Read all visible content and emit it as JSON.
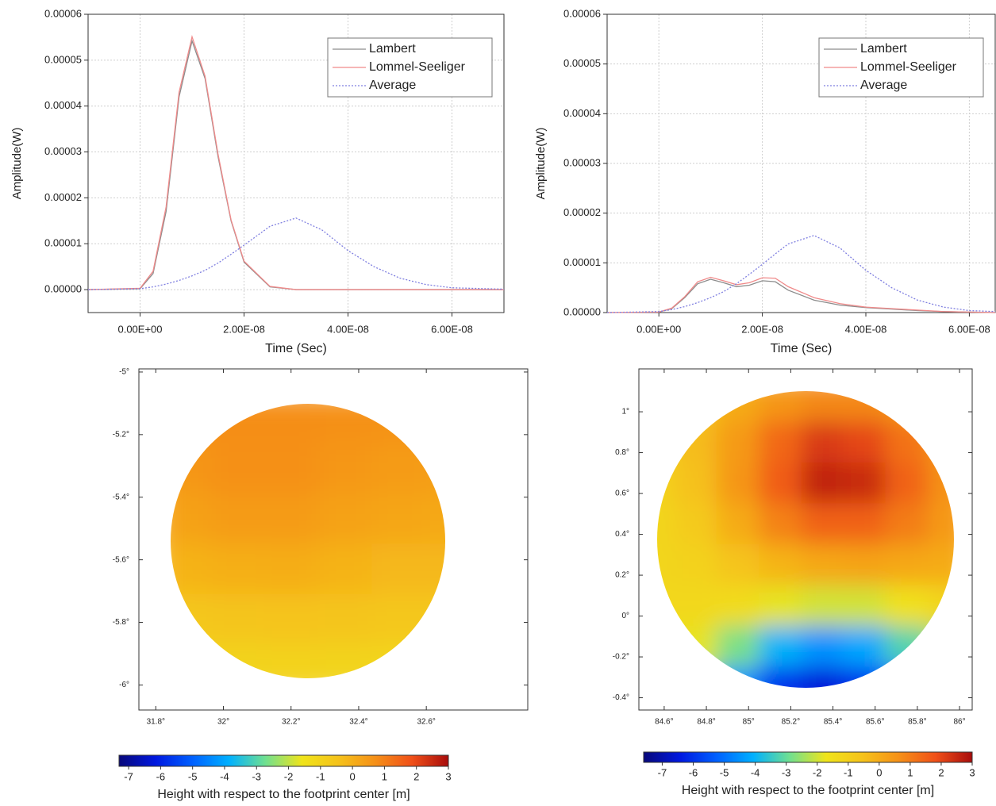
{
  "chart_data": [
    {
      "type": "line",
      "x_label": "Time (Sec)",
      "y_label": "Amplitude(W)",
      "x": [
        -1e-08,
        0,
        2.5e-09,
        5e-09,
        7.5e-09,
        1e-08,
        1.25e-08,
        1.5e-08,
        1.75e-08,
        2e-08,
        2.5e-08,
        3e-08,
        3.5e-08,
        4e-08,
        4.5e-08,
        5e-08,
        5.5e-08,
        6e-08,
        7e-08
      ],
      "series": [
        {
          "name": "Lambert",
          "color": "#8c8c8c",
          "linestyle": "solid",
          "values": [
            0,
            2e-07,
            3.5e-06,
            1.7e-05,
            4.2e-05,
            5.42e-05,
            4.6e-05,
            2.9e-05,
            1.5e-05,
            6e-06,
            6e-07,
            0,
            0,
            0,
            0,
            0,
            0,
            0,
            0
          ]
        },
        {
          "name": "Lommel-Seeliger",
          "color": "#f08a8a",
          "linestyle": "solid",
          "values": [
            0,
            3e-07,
            4e-06,
            1.8e-05,
            4.3e-05,
            5.51e-05,
            4.65e-05,
            2.95e-05,
            1.52e-05,
            6.2e-06,
            7e-07,
            0,
            0,
            0,
            0,
            0,
            0,
            0,
            0
          ]
        },
        {
          "name": "Average",
          "color": "#7f7fe0",
          "linestyle": "dotted",
          "values": [
            0,
            2e-07,
            6e-07,
            1.2e-06,
            2e-06,
            3e-06,
            4.2e-06,
            5.8e-06,
            7.7e-06,
            9.7e-06,
            1.38e-05,
            1.56e-05,
            1.3e-05,
            8.5e-06,
            5e-06,
            2.5e-06,
            1.1e-06,
            4e-07,
            1e-07
          ]
        }
      ],
      "xlim": [
        -1e-08,
        7e-08
      ],
      "ylim": [
        -5e-06,
        6e-05
      ],
      "xticks": [
        {
          "value": 0,
          "label": "0.00E+00"
        },
        {
          "value": 2e-08,
          "label": "2.00E-08"
        },
        {
          "value": 4e-08,
          "label": "4.00E-08"
        },
        {
          "value": 6e-08,
          "label": "6.00E-08"
        }
      ],
      "yticks": [
        {
          "value": 0,
          "label": "0.00000"
        },
        {
          "value": 1e-05,
          "label": "0.00001"
        },
        {
          "value": 2e-05,
          "label": "0.00002"
        },
        {
          "value": 3e-05,
          "label": "0.00003"
        },
        {
          "value": 4e-05,
          "label": "0.00004"
        },
        {
          "value": 5e-05,
          "label": "0.00005"
        },
        {
          "value": 6e-05,
          "label": "0.00006"
        }
      ],
      "grid": true,
      "legend": "upper right"
    },
    {
      "type": "line",
      "x_label": "Time (Sec)",
      "y_label": "Amplitude(W)",
      "x": [
        -1e-08,
        0,
        2.5e-09,
        5e-09,
        7.5e-09,
        1e-08,
        1.25e-08,
        1.5e-08,
        1.75e-08,
        2e-08,
        2.25e-08,
        2.5e-08,
        3e-08,
        3.5e-08,
        4e-08,
        4.5e-08,
        5e-08,
        5.5e-08,
        6e-08,
        6.5e-08
      ],
      "series": [
        {
          "name": "Lambert",
          "color": "#8c8c8c",
          "linestyle": "solid",
          "values": [
            0,
            1e-07,
            8e-07,
            3e-06,
            5.8e-06,
            6.7e-06,
            6e-06,
            5.2e-06,
            5.5e-06,
            6.4e-06,
            6.2e-06,
            4.5e-06,
            2.5e-06,
            1.5e-06,
            1e-06,
            7e-07,
            4e-07,
            2e-07,
            1e-07,
            0
          ]
        },
        {
          "name": "Lommel-Seeliger",
          "color": "#f08a8a",
          "linestyle": "solid",
          "values": [
            0,
            1e-07,
            9e-07,
            3.2e-06,
            6.2e-06,
            7.1e-06,
            6.4e-06,
            5.6e-06,
            6e-06,
            7e-06,
            6.9e-06,
            5.2e-06,
            3e-06,
            1.8e-06,
            1.1e-06,
            8e-07,
            5e-07,
            2e-07,
            1e-07,
            0
          ]
        },
        {
          "name": "Average",
          "color": "#7f7fe0",
          "linestyle": "dotted",
          "values": [
            0,
            2e-07,
            6e-07,
            1.2e-06,
            2e-06,
            3e-06,
            4.2e-06,
            5.8e-06,
            7.7e-06,
            9.7e-06,
            1.18e-05,
            1.38e-05,
            1.55e-05,
            1.3e-05,
            8.5e-06,
            5e-06,
            2.5e-06,
            1.1e-06,
            4e-07,
            2e-07
          ]
        }
      ],
      "xlim": [
        -1e-08,
        6.5e-08
      ],
      "ylim": [
        0,
        6e-05
      ],
      "xticks": [
        {
          "value": 0,
          "label": "0.00E+00"
        },
        {
          "value": 2e-08,
          "label": "2.00E-08"
        },
        {
          "value": 4e-08,
          "label": "4.00E-08"
        },
        {
          "value": 6e-08,
          "label": "6.00E-08"
        }
      ],
      "yticks": [
        {
          "value": 0,
          "label": "0.00000"
        },
        {
          "value": 1e-05,
          "label": "0.00001"
        },
        {
          "value": 2e-05,
          "label": "0.00002"
        },
        {
          "value": 3e-05,
          "label": "0.00003"
        },
        {
          "value": 4e-05,
          "label": "0.00004"
        },
        {
          "value": 5e-05,
          "label": "0.00005"
        },
        {
          "value": 6e-05,
          "label": "0.00006"
        }
      ],
      "grid": true,
      "legend": "upper right"
    },
    {
      "type": "contour",
      "x": [
        31.88,
        32.04,
        32.2,
        32.36,
        32.52,
        32.68
      ],
      "y": [
        -5.15,
        -5.31,
        -5.47,
        -5.63,
        -5.79,
        -5.95
      ],
      "z": [
        [
          0.7,
          0.75,
          0.75,
          0.7,
          0.65,
          0.6
        ],
        [
          0.55,
          0.7,
          0.7,
          0.55,
          0.45,
          0.4
        ],
        [
          0.3,
          0.45,
          0.45,
          0.3,
          0.2,
          0.15
        ],
        [
          -0.1,
          0,
          0.05,
          -0.1,
          -0.2,
          -0.2
        ],
        [
          -0.6,
          -0.55,
          -0.5,
          -0.55,
          -0.6,
          -0.65
        ],
        [
          -1.1,
          -1.05,
          -1,
          -1.05,
          -1.1,
          -1.15
        ]
      ],
      "xlim": [
        31.75,
        32.9
      ],
      "ylim": [
        -6.08,
        -4.99
      ],
      "xticks": [
        {
          "value": 31.8,
          "label": "31.8°"
        },
        {
          "value": 32,
          "label": "32°"
        },
        {
          "value": 32.2,
          "label": "32.2°"
        },
        {
          "value": 32.4,
          "label": "32.4°"
        },
        {
          "value": 32.6,
          "label": "32.6°"
        }
      ],
      "yticks": [
        {
          "value": -5,
          "label": "-5°"
        },
        {
          "value": -5.2,
          "label": "-5.2°"
        },
        {
          "value": -5.4,
          "label": "-5.4°"
        },
        {
          "value": -5.6,
          "label": "-5.6°"
        },
        {
          "value": -5.8,
          "label": "-5.8°"
        },
        {
          "value": -6,
          "label": "-6°"
        }
      ],
      "colorbar": {
        "label": "Height with respect to the footprint center [m]",
        "lim": [
          -7.3,
          3
        ],
        "ticks": [
          -7,
          -6,
          -5,
          -4,
          -3,
          -2,
          -1,
          0,
          1,
          2,
          3
        ],
        "colors": [
          "#08087a",
          "#0018e0",
          "#0060ff",
          "#00b0ff",
          "#70e090",
          "#f0e41a",
          "#f5c21a",
          "#f59018",
          "#f05018",
          "#a80c0c"
        ]
      }
    },
    {
      "type": "contour",
      "x": [
        84.55,
        84.75,
        84.95,
        85.15,
        85.35,
        85.55,
        85.75,
        85.95
      ],
      "y": [
        1.05,
        0.85,
        0.65,
        0.45,
        0.25,
        0.05,
        -0.15,
        -0.35
      ],
      "z": [
        [
          -1,
          -0.6,
          0,
          0.5,
          0.8,
          0.8,
          0.5,
          0.2
        ],
        [
          -1,
          -0.4,
          0.4,
          1.4,
          2.2,
          2,
          1.2,
          0.5
        ],
        [
          -1.1,
          -0.5,
          0.5,
          1.6,
          2.6,
          2.5,
          1.5,
          0.6
        ],
        [
          -1.2,
          -0.8,
          0,
          0.9,
          1.5,
          1.5,
          1,
          0.4
        ],
        [
          -1.2,
          -1.1,
          -0.6,
          -0.2,
          0.1,
          0.2,
          0.1,
          0
        ],
        [
          -1.3,
          -1.3,
          -1.4,
          -1.8,
          -2,
          -2,
          -1.6,
          -1.2
        ],
        [
          -1.5,
          -1.8,
          -2.8,
          -4,
          -4.5,
          -4.2,
          -3.2,
          -2.4
        ],
        [
          -2,
          -3,
          -4.5,
          -6,
          -6.5,
          -6,
          -5,
          -4
        ]
      ],
      "xlim": [
        84.48,
        86.06
      ],
      "ylim": [
        -0.46,
        1.21
      ],
      "xticks": [
        {
          "value": 84.6,
          "label": "84.6°"
        },
        {
          "value": 84.8,
          "label": "84.8°"
        },
        {
          "value": 85,
          "label": "85°"
        },
        {
          "value": 85.2,
          "label": "85.2°"
        },
        {
          "value": 85.4,
          "label": "85.4°"
        },
        {
          "value": 85.6,
          "label": "85.6°"
        },
        {
          "value": 85.8,
          "label": "85.8°"
        },
        {
          "value": 86,
          "label": "86°"
        }
      ],
      "yticks": [
        {
          "value": -0.4,
          "label": "-0.4°"
        },
        {
          "value": -0.2,
          "label": "-0.2°"
        },
        {
          "value": 0,
          "label": "0°"
        },
        {
          "value": 0.2,
          "label": "0.2°"
        },
        {
          "value": 0.4,
          "label": "0.4°"
        },
        {
          "value": 0.6,
          "label": "0.6°"
        },
        {
          "value": 0.8,
          "label": "0.8°"
        },
        {
          "value": 1,
          "label": "1°"
        }
      ],
      "colorbar": {
        "label": "Height with respect to the footprint center [m]",
        "lim": [
          -7.6,
          3
        ],
        "ticks": [
          -7,
          -6,
          -5,
          -4,
          -3,
          -2,
          -1,
          0,
          1,
          2,
          3
        ],
        "colors": [
          "#08087a",
          "#0018e0",
          "#0060ff",
          "#00b0ff",
          "#70e090",
          "#f0e41a",
          "#f5c21a",
          "#f59018",
          "#f05018",
          "#a80c0c"
        ]
      }
    }
  ]
}
